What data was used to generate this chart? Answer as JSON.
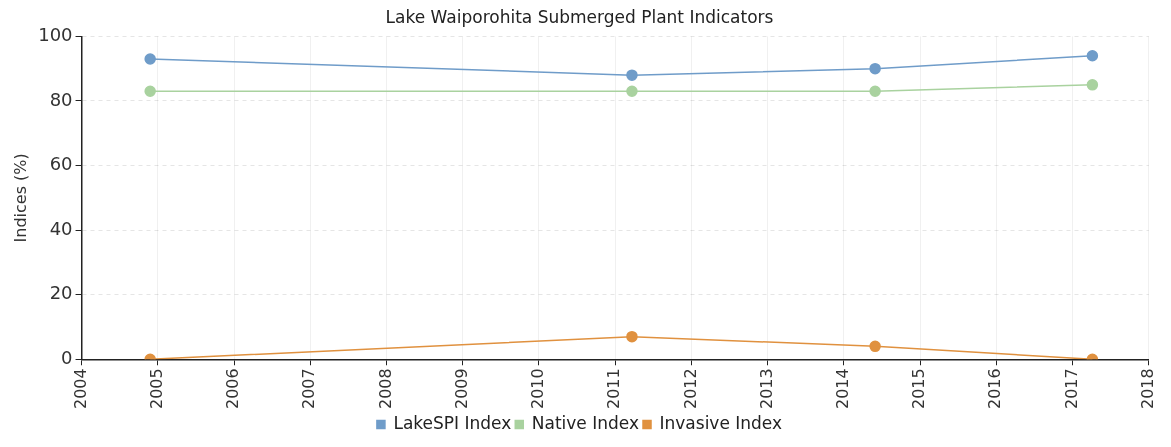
{
  "chart_data": {
    "type": "line",
    "title": "Lake Waiporohita Submerged Plant Indicators",
    "ylabel": "Indices (%)",
    "x": [
      2004.9,
      2011.22,
      2014.41,
      2017.26
    ],
    "series": [
      {
        "name": "LakeSPI Index",
        "color": "#6f9cc9",
        "values": [
          93,
          88,
          90,
          94
        ]
      },
      {
        "name": "Native Index",
        "color": "#a9d29f",
        "values": [
          83,
          83,
          83,
          85
        ]
      },
      {
        "name": "Invasive Index",
        "color": "#e0913f",
        "values": [
          0,
          7,
          4,
          0
        ]
      }
    ],
    "xlim": [
      2004,
      2018
    ],
    "xticks": [
      2004,
      2005,
      2006,
      2007,
      2008,
      2009,
      2010,
      2011,
      2012,
      2013,
      2014,
      2015,
      2016,
      2017,
      2018
    ],
    "ylim": [
      0,
      100
    ],
    "yticks": [
      0,
      20,
      40,
      60,
      80,
      100
    ],
    "grid": true,
    "legend": "bottom",
    "marker": "circle",
    "line_style": "solid"
  }
}
